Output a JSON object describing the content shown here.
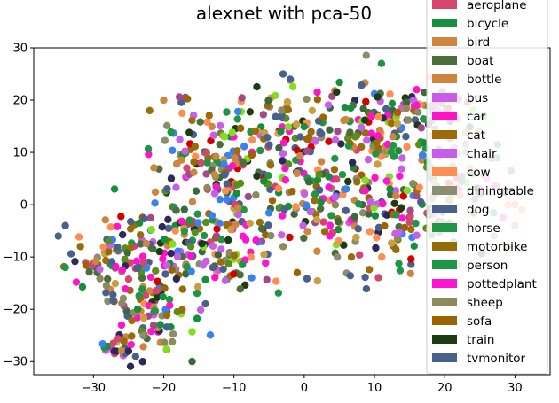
{
  "chart_data": {
    "type": "scatter",
    "title": "alexnet with pca-50",
    "xlabel": "",
    "ylabel": "",
    "xlim": [
      -38.5,
      35
    ],
    "ylim": [
      -32.5,
      30
    ],
    "xticks": [
      -30,
      -20,
      -10,
      0,
      10,
      20,
      30
    ],
    "yticks": [
      -30,
      -20,
      -10,
      0,
      10,
      20,
      30
    ],
    "grid": false,
    "legend_position": "top-right",
    "series": [
      {
        "name": "aeroplane",
        "color": "#d6456e"
      },
      {
        "name": "bicycle",
        "color": "#148f3c"
      },
      {
        "name": "bird",
        "color": "#cd853f"
      },
      {
        "name": "boat",
        "color": "#4a6e3c"
      },
      {
        "name": "bottle",
        "color": "#cd853f"
      },
      {
        "name": "bus",
        "color": "#c65ee8"
      },
      {
        "name": "car",
        "color": "#ff14c8"
      },
      {
        "name": "cat",
        "color": "#9c6c08"
      },
      {
        "name": "chair",
        "color": "#c65ee8"
      },
      {
        "name": "cow",
        "color": "#ff8c50"
      },
      {
        "name": "diningtable",
        "color": "#8c8c6e"
      },
      {
        "name": "dog",
        "color": "#4a608c"
      },
      {
        "name": "horse",
        "color": "#1e9646"
      },
      {
        "name": "motorbike",
        "color": "#966c08"
      },
      {
        "name": "person",
        "color": "#1e9646"
      },
      {
        "name": "pottedplant",
        "color": "#ff14d2"
      },
      {
        "name": "sheep",
        "color": "#8a8a5a"
      },
      {
        "name": "sofa",
        "color": "#9c6400"
      },
      {
        "name": "train",
        "color": "#1e3c14"
      },
      {
        "name": "tvmonitor",
        "color": "#4a608c"
      }
    ],
    "extra_colors": [
      "#7fe01c",
      "#3a80f0",
      "#d40000",
      "#5a8c1e",
      "#2a2a5a",
      "#a04a8a",
      "#3a6a3a",
      "#c8a040"
    ],
    "points": {
      "clusters": [
        {
          "cx": -27,
          "cy": -10,
          "sx": 3.5,
          "sy": 3.5,
          "n": 70
        },
        {
          "cx": -22,
          "cy": -20,
          "sx": 3,
          "sy": 4.5,
          "n": 90
        },
        {
          "cx": -18,
          "cy": -8,
          "sx": 4,
          "sy": 5,
          "n": 110
        },
        {
          "cx": -16,
          "cy": 10,
          "sx": 4,
          "sy": 5,
          "n": 80
        },
        {
          "cx": -10,
          "cy": 2,
          "sx": 4,
          "sy": 5,
          "n": 90
        },
        {
          "cx": -4,
          "cy": 14,
          "sx": 5,
          "sy": 5,
          "n": 90
        },
        {
          "cx": 2,
          "cy": 0,
          "sx": 5,
          "sy": 5,
          "n": 80
        },
        {
          "cx": 8,
          "cy": 12,
          "sx": 5,
          "sy": 5,
          "n": 100
        },
        {
          "cx": 15,
          "cy": 18,
          "sx": 4,
          "sy": 3,
          "n": 70
        },
        {
          "cx": 12,
          "cy": -3,
          "sx": 6,
          "sy": 5,
          "n": 110
        },
        {
          "cx": 20,
          "cy": 5,
          "sx": 5,
          "sy": 6,
          "n": 70
        },
        {
          "cx": -26,
          "cy": -27,
          "sx": 1.5,
          "sy": 1.2,
          "n": 20
        },
        {
          "cx": -9,
          "cy": -12,
          "sx": 3,
          "sy": 2.5,
          "n": 30
        }
      ],
      "markers": [
        [
          11,
          27,
          "#1e9646"
        ],
        [
          -34,
          -12,
          "#1e9646"
        ],
        [
          -35,
          -6,
          "#4a608c"
        ],
        [
          -34,
          -4,
          "#4a608c"
        ],
        [
          -26,
          -23,
          "#ff14c8"
        ],
        [
          -27,
          3,
          "#148f3c"
        ],
        [
          -20,
          20,
          "#cd853f"
        ],
        [
          -22,
          18,
          "#9c6c08"
        ],
        [
          -3,
          25,
          "#4a608c"
        ],
        [
          -2,
          24,
          "#4a608c"
        ],
        [
          23,
          10,
          "#8c8c6e"
        ],
        [
          25,
          14,
          "#cd853f"
        ],
        [
          26,
          5,
          "#c65ee8"
        ],
        [
          29,
          0,
          "#ff8c50"
        ],
        [
          30,
          0,
          "#cd853f"
        ],
        [
          31,
          -1,
          "#ff8c50"
        ],
        [
          29,
          -8,
          "#966c08"
        ],
        [
          27,
          -6,
          "#8c8c6e"
        ],
        [
          30,
          -4,
          "#cd853f"
        ],
        [
          -1,
          -13,
          "#9c6400"
        ],
        [
          -3,
          -8,
          "#8a8a5a"
        ],
        [
          -12,
          1,
          "#3a80f0"
        ],
        [
          -11,
          1,
          "#3a80f0"
        ],
        [
          6,
          3,
          "#3a80f0"
        ],
        [
          22,
          3,
          "#ff14c8"
        ],
        [
          19,
          18,
          "#c65ee8"
        ],
        [
          16,
          19,
          "#ff14c8"
        ],
        [
          16,
          22,
          "#ff14c8"
        ],
        [
          -25,
          -28,
          "#2a2a5a"
        ],
        [
          -24,
          -29,
          "#4a608c"
        ],
        [
          -23,
          -30,
          "#2a2a5a"
        ],
        [
          -27,
          -28,
          "#2a2a5a"
        ]
      ]
    }
  }
}
